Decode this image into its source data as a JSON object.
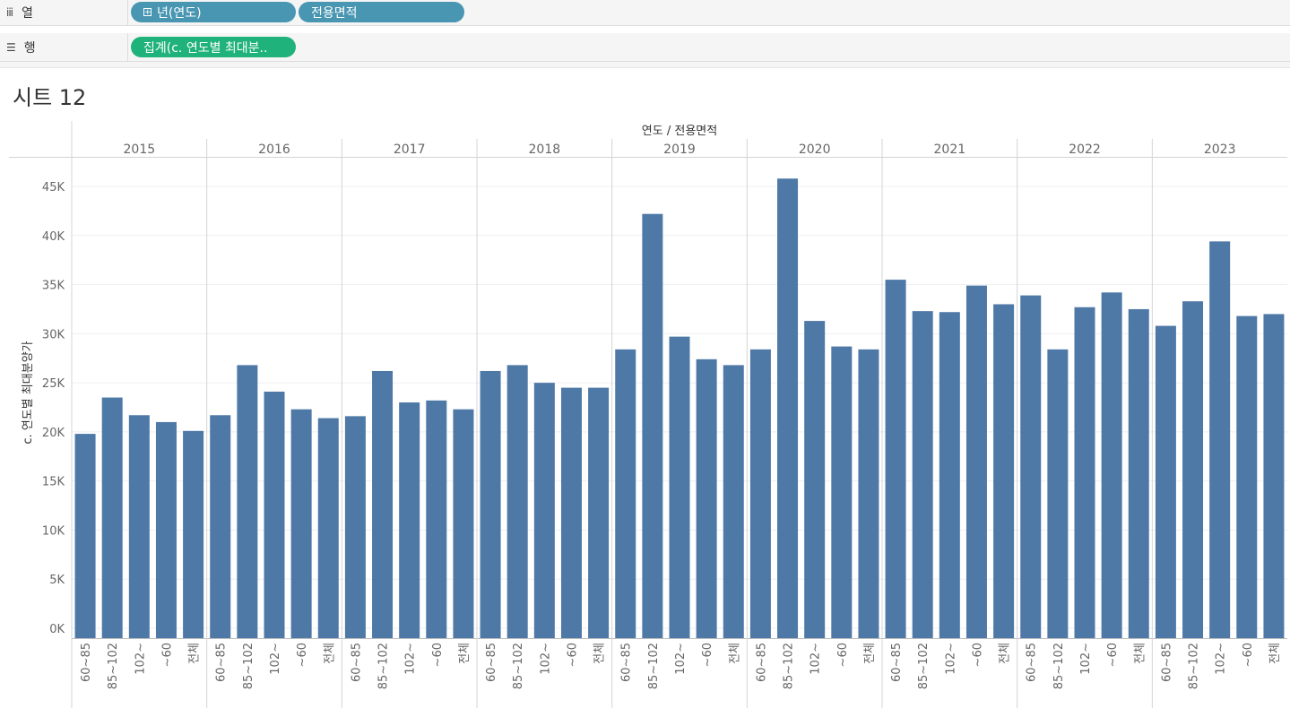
{
  "shelves": {
    "columns": {
      "label": "열",
      "icon": "columns-icon",
      "pills": [
        {
          "text": "년(연도)",
          "expand_icon": "plus-box-icon"
        },
        {
          "text": "전용면적"
        }
      ]
    },
    "rows": {
      "label": "행",
      "icon": "rows-icon",
      "pills": [
        {
          "text": "집계(c. 연도별 최대분.."
        }
      ]
    }
  },
  "colors": {
    "dimension_pill": "#4996b2",
    "measure_pill": "#1fb27a",
    "bar": "#4e79a7"
  },
  "sheet": {
    "title": "시트 12"
  },
  "chart_data": {
    "type": "bar",
    "header_title": "연도 / 전용면적",
    "ylabel": "c. 연도별 최대분양가",
    "ylim": [
      0,
      47500
    ],
    "yticks": [
      0,
      5000,
      10000,
      15000,
      20000,
      25000,
      30000,
      35000,
      40000,
      45000
    ],
    "ytick_labels": [
      "0K",
      "5K",
      "10K",
      "15K",
      "20K",
      "25K",
      "30K",
      "35K",
      "40K",
      "45K"
    ],
    "grid": true,
    "categories": [
      "60~85",
      "85~102",
      "102~",
      "~60",
      "전체"
    ],
    "groups": [
      {
        "year": "2015",
        "values": [
          19800,
          23500,
          21700,
          21000,
          20100
        ]
      },
      {
        "year": "2016",
        "values": [
          21700,
          26800,
          24100,
          22300,
          21400
        ]
      },
      {
        "year": "2017",
        "values": [
          21600,
          26200,
          23000,
          23200,
          22300
        ]
      },
      {
        "year": "2018",
        "values": [
          26200,
          26800,
          25000,
          24500,
          24500
        ]
      },
      {
        "year": "2019",
        "values": [
          28400,
          42200,
          29700,
          27400,
          26800
        ]
      },
      {
        "year": "2020",
        "values": [
          28400,
          45800,
          31300,
          28700,
          28400
        ]
      },
      {
        "year": "2021",
        "values": [
          35500,
          32300,
          32200,
          34900,
          33000
        ]
      },
      {
        "year": "2022",
        "values": [
          33900,
          28400,
          32700,
          34200,
          32500
        ]
      },
      {
        "year": "2023",
        "values": [
          30800,
          33300,
          39400,
          31800,
          32000
        ]
      }
    ]
  }
}
